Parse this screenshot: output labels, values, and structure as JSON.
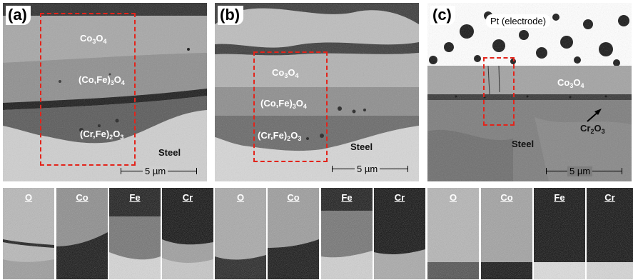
{
  "panels": [
    {
      "label": "(a)",
      "layers": [
        "Co3O4",
        "(Co,Fe)3O4",
        "(Cr,Fe)2O3"
      ],
      "steel_label": "Steel",
      "scale_bar": "5 µm",
      "maps": [
        "O",
        "Co",
        "Fe",
        "Cr"
      ]
    },
    {
      "label": "(b)",
      "layers": [
        "Co3O4",
        "(Co,Fe)3O4",
        "(Cr,Fe)2O3"
      ],
      "steel_label": "Steel",
      "scale_bar": "5 µm",
      "maps": [
        "O",
        "Co",
        "Fe",
        "Cr"
      ]
    },
    {
      "label": "(c)",
      "electrode_label": "Pt (electrode)",
      "layers": [
        "Co3O4",
        "Cr2O3"
      ],
      "steel_label": "Steel",
      "scale_bar": "5 µm",
      "maps": [
        "O",
        "Co",
        "Fe",
        "Cr"
      ]
    }
  ],
  "colors": {
    "highlight_box": "#e3241b",
    "background": "#ffffff"
  }
}
